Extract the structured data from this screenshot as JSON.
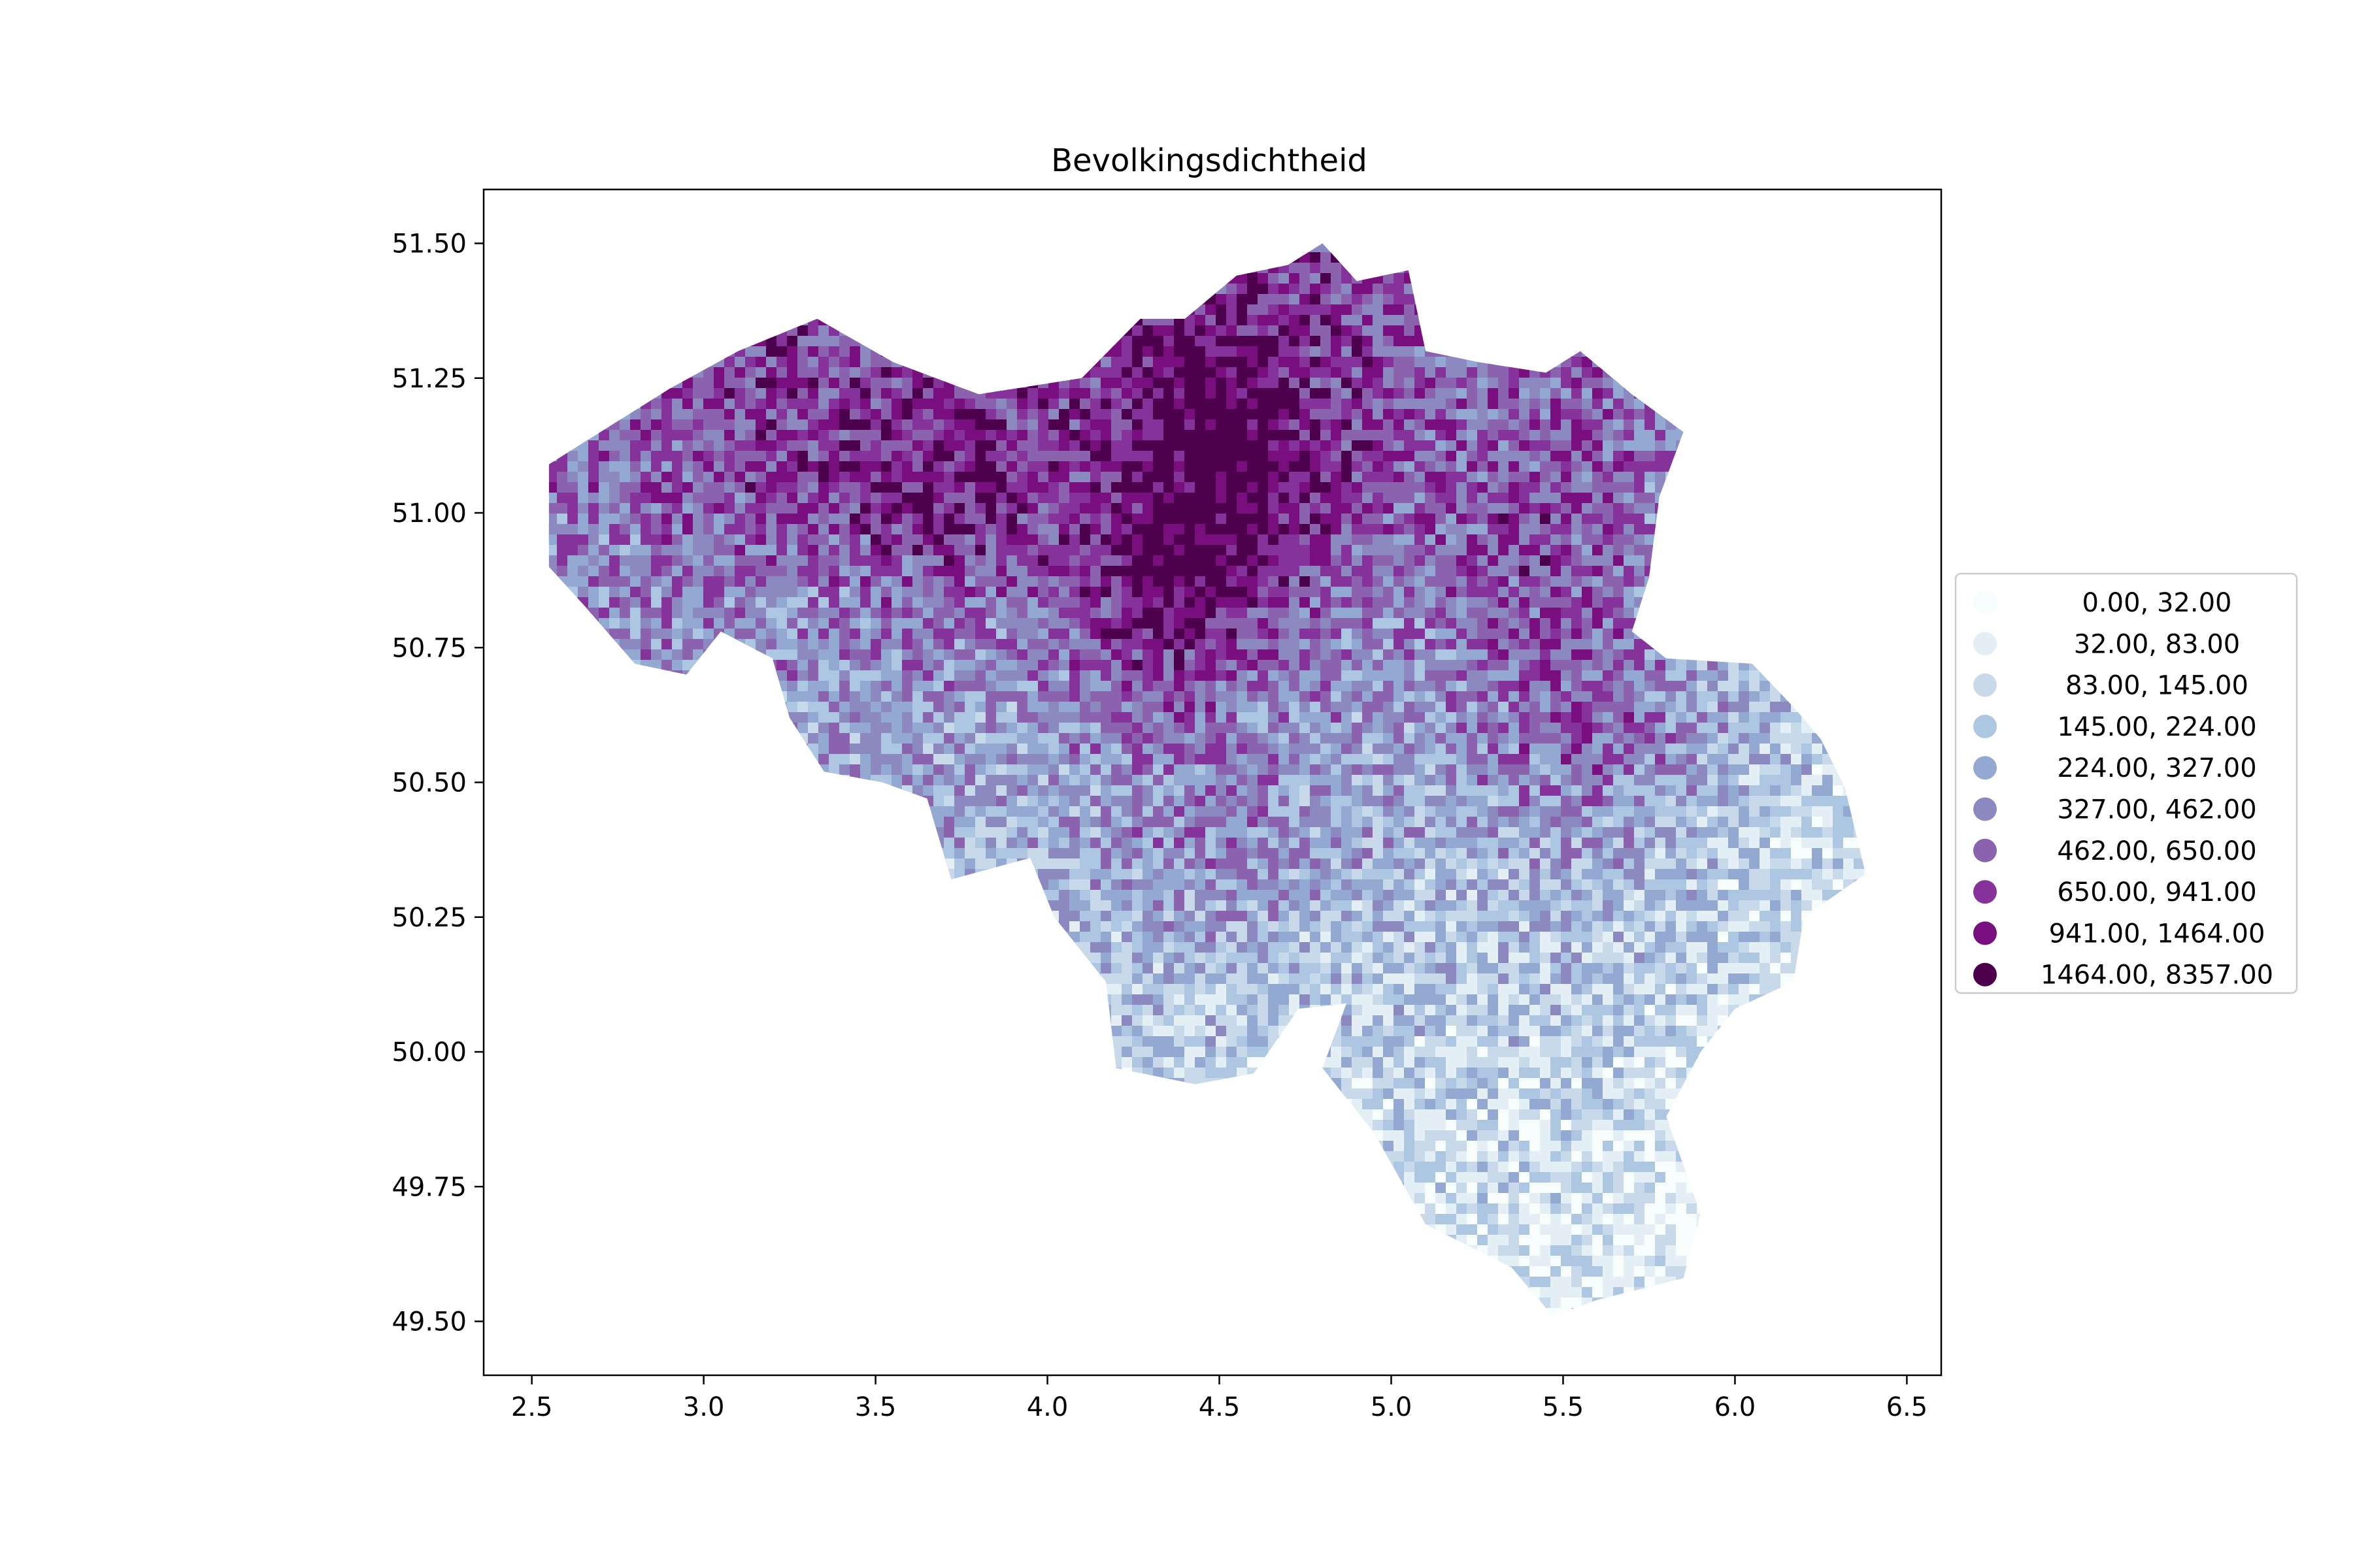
{
  "chart_data": {
    "type": "choropleth-map",
    "title": "Bevolkingsdichtheid",
    "xlabel": "",
    "ylabel": "",
    "xlim": [
      2.36,
      6.6
    ],
    "ylim": [
      49.4,
      51.6
    ],
    "x_ticks": [
      2.5,
      3.0,
      3.5,
      4.0,
      4.5,
      5.0,
      5.5,
      6.0,
      6.5
    ],
    "y_ticks": [
      49.5,
      49.75,
      50.0,
      50.25,
      50.5,
      50.75,
      51.0,
      51.25,
      51.5
    ],
    "x_tick_labels": [
      "2.5",
      "3.0",
      "3.5",
      "4.0",
      "4.5",
      "5.0",
      "5.5",
      "6.0",
      "6.5"
    ],
    "y_tick_labels": [
      "49.50",
      "49.75",
      "50.00",
      "50.25",
      "50.50",
      "50.75",
      "51.00",
      "51.25",
      "51.50"
    ],
    "legend_placement": "right-center",
    "legend": [
      {
        "label": "0.00,   32.00",
        "range": [
          0,
          32
        ],
        "color": "#f7fcfd"
      },
      {
        "label": "32.00,   83.00",
        "range": [
          32,
          83
        ],
        "color": "#e3eff5"
      },
      {
        "label": "83.00,  145.00",
        "range": [
          83,
          145
        ],
        "color": "#c8d9ea"
      },
      {
        "label": "145.00,  224.00",
        "range": [
          145,
          224
        ],
        "color": "#adc6e1"
      },
      {
        "label": "224.00,  327.00",
        "range": [
          224,
          327
        ],
        "color": "#93a9d2"
      },
      {
        "label": "327.00,  462.00",
        "range": [
          327,
          462
        ],
        "color": "#8c88c0"
      },
      {
        "label": "462.00,  650.00",
        "range": [
          462,
          650
        ],
        "color": "#8b62ae"
      },
      {
        "label": "650.00,  941.00",
        "range": [
          650,
          941
        ],
        "color": "#85339a"
      },
      {
        "label": "941.00, 1464.00",
        "range": [
          941,
          1464
        ],
        "color": "#790f7e"
      },
      {
        "label": "1464.00, 8357.00",
        "range": [
          1464,
          8357
        ],
        "color": "#4d004b"
      }
    ],
    "outline_lonlat": [
      [
        2.55,
        51.09
      ],
      [
        2.9,
        51.23
      ],
      [
        3.1,
        51.3
      ],
      [
        3.33,
        51.36
      ],
      [
        3.55,
        51.28
      ],
      [
        3.8,
        51.22
      ],
      [
        4.1,
        51.25
      ],
      [
        4.27,
        51.36
      ],
      [
        4.4,
        51.36
      ],
      [
        4.55,
        51.44
      ],
      [
        4.7,
        51.46
      ],
      [
        4.8,
        51.5
      ],
      [
        4.9,
        51.43
      ],
      [
        5.05,
        51.45
      ],
      [
        5.1,
        51.3
      ],
      [
        5.25,
        51.28
      ],
      [
        5.45,
        51.26
      ],
      [
        5.55,
        51.3
      ],
      [
        5.7,
        51.22
      ],
      [
        5.85,
        51.15
      ],
      [
        5.78,
        51.03
      ],
      [
        5.75,
        50.88
      ],
      [
        5.7,
        50.78
      ],
      [
        5.8,
        50.73
      ],
      [
        6.05,
        50.72
      ],
      [
        6.17,
        50.64
      ],
      [
        6.25,
        50.58
      ],
      [
        6.32,
        50.49
      ],
      [
        6.38,
        50.33
      ],
      [
        6.2,
        50.25
      ],
      [
        6.17,
        50.13
      ],
      [
        6.0,
        50.08
      ],
      [
        5.9,
        50.0
      ],
      [
        5.8,
        49.88
      ],
      [
        5.9,
        49.7
      ],
      [
        5.85,
        49.58
      ],
      [
        5.6,
        49.54
      ],
      [
        5.47,
        49.51
      ],
      [
        5.35,
        49.6
      ],
      [
        5.1,
        49.68
      ],
      [
        4.95,
        49.85
      ],
      [
        4.8,
        49.97
      ],
      [
        4.87,
        50.09
      ],
      [
        4.73,
        50.08
      ],
      [
        4.6,
        49.96
      ],
      [
        4.43,
        49.94
      ],
      [
        4.2,
        49.97
      ],
      [
        4.17,
        50.13
      ],
      [
        4.02,
        50.25
      ],
      [
        3.95,
        50.36
      ],
      [
        3.72,
        50.32
      ],
      [
        3.65,
        50.47
      ],
      [
        3.52,
        50.5
      ],
      [
        3.35,
        50.52
      ],
      [
        3.25,
        50.62
      ],
      [
        3.2,
        50.73
      ],
      [
        3.05,
        50.78
      ],
      [
        2.95,
        50.7
      ],
      [
        2.8,
        50.72
      ],
      [
        2.65,
        50.83
      ],
      [
        2.55,
        50.9
      ]
    ]
  }
}
